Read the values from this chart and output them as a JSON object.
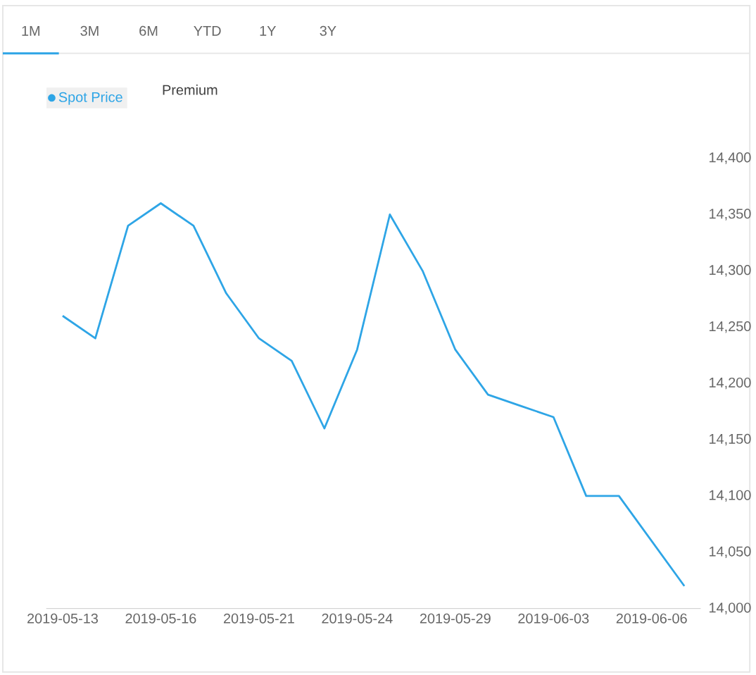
{
  "chart_data": {
    "type": "line",
    "categories": [
      "2019-05-13",
      null,
      null,
      "2019-05-16",
      null,
      null,
      "2019-05-21",
      null,
      null,
      "2019-05-24",
      null,
      null,
      "2019-05-29",
      null,
      null,
      "2019-06-03",
      null,
      null,
      "2019-06-06",
      null
    ],
    "series": [
      {
        "name": "Spot Price",
        "color": "#2ea5e6",
        "values": [
          14260,
          14240,
          14340,
          14360,
          14340,
          14280,
          14240,
          14220,
          14160,
          14230,
          14350,
          14300,
          14230,
          14190,
          14180,
          14170,
          14100,
          14100,
          14060,
          14020
        ]
      }
    ],
    "ylim": [
      14000,
      14400
    ],
    "yticks": [
      {
        "value": 14000,
        "label": "14,000"
      },
      {
        "value": 14050,
        "label": "14,050"
      },
      {
        "value": 14100,
        "label": "14,100"
      },
      {
        "value": 14150,
        "label": "14,150"
      },
      {
        "value": 14200,
        "label": "14,200"
      },
      {
        "value": 14250,
        "label": "14,250"
      },
      {
        "value": 14300,
        "label": "14,300"
      },
      {
        "value": 14350,
        "label": "14,350"
      },
      {
        "value": 14400,
        "label": "14,400"
      }
    ],
    "grid": false,
    "legend": "top left",
    "marker": "none",
    "line_style": "solid",
    "annotations": [
      "1M",
      "3M",
      "6M",
      "YTD",
      "1Y",
      "3Y",
      "Premium"
    ]
  }
}
